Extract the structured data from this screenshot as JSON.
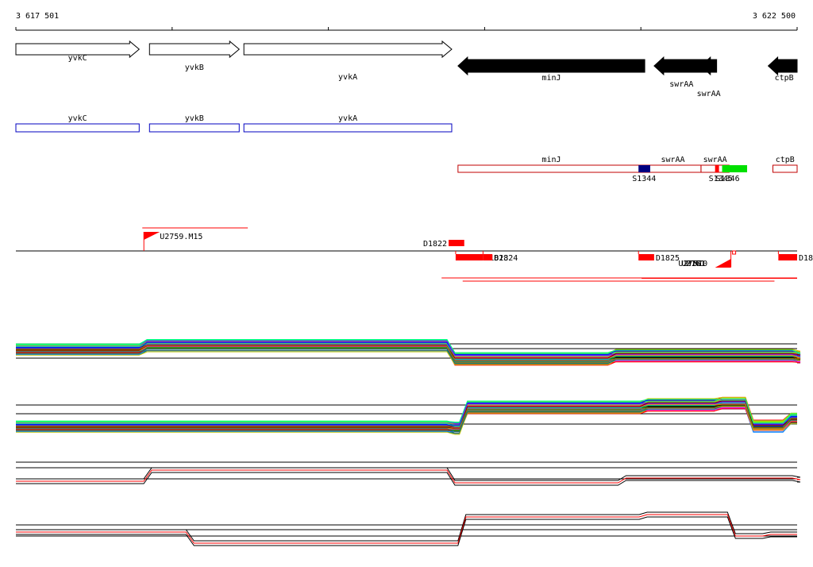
{
  "coordinates": {
    "start_label": "3 617 501",
    "end_label": "3 622 500",
    "start": 3617501,
    "end": 3622500
  },
  "genes": [
    {
      "name": "yvkC",
      "start": 3617501,
      "end": 3618290,
      "strand": "+",
      "fill": "#ffffff"
    },
    {
      "name": "yvkB",
      "start": 3618356,
      "end": 3618930,
      "strand": "+",
      "fill": "#ffffff"
    },
    {
      "name": "yvkA",
      "start": 3618960,
      "end": 3620290,
      "strand": "+",
      "fill": "#ffffff"
    },
    {
      "name": "minJ",
      "start": 3620330,
      "end": 3621525,
      "strand": "-",
      "fill": "#000000"
    },
    {
      "name": "swrAA",
      "start": 3621585,
      "end": 3621935,
      "strand": "-",
      "fill": "#000000"
    },
    {
      "name": "swrAA",
      "start": 3621885,
      "end": 3621985,
      "strand": "-",
      "fill": "#000000"
    },
    {
      "name": "ctpB",
      "start": 3622315,
      "end": 3622500,
      "strand": "-",
      "fill": "#000000"
    }
  ],
  "plus_transcripts": [
    {
      "name": "yvkC",
      "start": 3617501,
      "end": 3618290
    },
    {
      "name": "yvkB",
      "start": 3618356,
      "end": 3618930
    },
    {
      "name": "yvkA",
      "start": 3618960,
      "end": 3620290
    }
  ],
  "minus_transcripts": [
    {
      "name": "minJ",
      "start": 3620330,
      "end": 3621525
    },
    {
      "name": "swrAA",
      "start": 3621525,
      "end": 3621885
    },
    {
      "name": "swrAA",
      "start": 3621885,
      "end": 3622065
    },
    {
      "name": "ctpB",
      "start": 3622345,
      "end": 3622500
    }
  ],
  "minus_features": [
    {
      "name": "S1344",
      "start": 3621485,
      "end": 3621560,
      "color": "#000080"
    },
    {
      "name": "S1345",
      "start": 3621975,
      "end": 3622000,
      "color": "#ff0000"
    },
    {
      "name": "S1346",
      "start": 3622020,
      "end": 3622180,
      "color": "#00e000"
    }
  ],
  "upper_elements": {
    "flag": {
      "name": "U2759.M15",
      "pos": 3618320
    },
    "line": {
      "start": 3618310,
      "end": 3618985
    },
    "blocks": [
      {
        "name": "D1822",
        "start": 3620270,
        "end": 3620370
      }
    ]
  },
  "lower_elements": {
    "blocks": [
      {
        "name": "D1823",
        "start": 3620315,
        "end": 3620490
      },
      {
        "name": "D1824",
        "start": 3620490,
        "end": 3620550
      },
      {
        "name": "D1825",
        "start": 3621485,
        "end": 3621585
      },
      {
        "name": "D18",
        "start": 3622380,
        "end": 3622500
      }
    ],
    "overlap_labels": [
      {
        "name": "U2757",
        "pos": 3621740
      },
      {
        "name": "U2761",
        "pos": 3621760
      },
      {
        "name": "M17",
        "pos": 3621790
      },
      {
        "name": "M10",
        "pos": 3621835
      }
    ],
    "flag": {
      "pos": 3621995
    },
    "lines": [
      {
        "start": 3620225,
        "end": 3622500,
        "offset": 34
      },
      {
        "start": 3621505,
        "end": 3622500,
        "offset": 33
      },
      {
        "start": 3620360,
        "end": 3622355,
        "offset": 38
      }
    ]
  },
  "profile_panels": [
    {
      "name": "profiles-plus-strand",
      "lines": 48,
      "palette": [
        "#ff0000",
        "#00b000",
        "#0000ff",
        "#ff00ff",
        "#00c0c0",
        "#c0c000",
        "#ff8000",
        "#8000ff",
        "#008080",
        "#800000",
        "#00ff80",
        "#808000",
        "#ff0080",
        "#0080ff",
        "#000000",
        "#80ff00",
        "#804000",
        "#4040ff"
      ],
      "refs": [
        3,
        9,
        21
      ],
      "base": 10,
      "steps": [
        {
          "pos": 3617501,
          "d": 0
        },
        {
          "pos": 3618320,
          "d": -5
        },
        {
          "pos": 3620290,
          "d": 12
        },
        {
          "pos": 3621320,
          "d": 8
        },
        {
          "pos": 3622500,
          "d": 10
        }
      ]
    },
    {
      "name": "profiles-minus-strand",
      "lines": 48,
      "palette": [
        "#ff0000",
        "#00b000",
        "#0000ff",
        "#ff00ff",
        "#00c0c0",
        "#c0c000",
        "#ff8000",
        "#8000ff",
        "#008080",
        "#800000",
        "#00ff80",
        "#808000",
        "#ff0080",
        "#0080ff",
        "#000000",
        "#80ff00",
        "#804000",
        "#4040ff"
      ],
      "refs": [
        5,
        16,
        29
      ],
      "base": 32,
      "steps": [
        {
          "pos": 3617501,
          "d": 0
        },
        {
          "pos": 3620290,
          "d": 2
        },
        {
          "pos": 3620370,
          "d": -24
        },
        {
          "pos": 3621525,
          "d": -27
        },
        {
          "pos": 3622000,
          "d": -29
        },
        {
          "pos": 3622200,
          "d": 0
        },
        {
          "pos": 3622440,
          "d": -10
        }
      ]
    },
    {
      "name": "profiles-summary-plus",
      "lines": 3,
      "palette": [
        "#000000",
        "#ff0000",
        "#000000"
      ],
      "refs": [
        0,
        7,
        21
      ],
      "base": 24,
      "steps": [
        {
          "pos": 3617501,
          "d": 0
        },
        {
          "pos": 3618350,
          "d": -14
        },
        {
          "pos": 3620290,
          "d": 2
        },
        {
          "pos": 3621385,
          "d": -4
        },
        {
          "pos": 3622500,
          "d": -2
        }
      ]
    },
    {
      "name": "profiles-summary-minus",
      "lines": 3,
      "palette": [
        "#000000",
        "#ff0000",
        "#000000"
      ],
      "refs": [
        3,
        9,
        17
      ],
      "base": 12,
      "steps": [
        {
          "pos": 3617501,
          "d": 0
        },
        {
          "pos": 3618620,
          "d": 14
        },
        {
          "pos": 3620360,
          "d": -19
        },
        {
          "pos": 3621520,
          "d": -22
        },
        {
          "pos": 3622085,
          "d": 5
        },
        {
          "pos": 3622310,
          "d": 3
        }
      ]
    }
  ]
}
